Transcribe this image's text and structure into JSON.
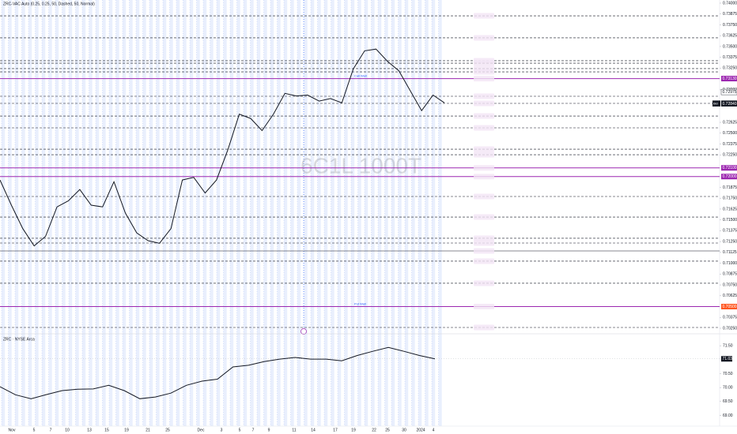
{
  "chart_data": [
    {
      "type": "line",
      "title": "ZRC-VAC Auto (0.25, 0.25, 50, Dashed, 50, Normal)",
      "watermark": "6C1L 1000T",
      "series": [
        {
          "name": "ZRC-VAC",
          "color": "#131722",
          "values": [
            0.7196,
            0.7167,
            0.714,
            0.712,
            0.7131,
            0.7165,
            0.7172,
            0.7185,
            0.7167,
            0.7165,
            0.7194,
            0.7158,
            0.7135,
            0.7126,
            0.7123,
            0.714,
            0.7196,
            0.7199,
            0.7181,
            0.7196,
            0.7231,
            0.7272,
            0.7267,
            0.7253,
            0.7272,
            0.7296,
            0.7293,
            0.7294,
            0.7287,
            0.729,
            0.7285,
            0.7324,
            0.7345,
            0.7347,
            0.7333,
            0.7322,
            0.7299,
            0.7276,
            0.7294,
            0.7285
          ]
        }
      ],
      "levels": [
        {
          "value": 0.73854
        },
        {
          "value": 0.736
        },
        {
          "value": 0.73336
        },
        {
          "value": 0.73308
        },
        {
          "value": 0.73245
        },
        {
          "value": 0.73208
        },
        {
          "value": 0.7313,
          "color": "#9c27b0",
          "label": "Call Wall"
        },
        {
          "value": 0.72926
        },
        {
          "value": 0.72844
        },
        {
          "value": 0.72698
        },
        {
          "value": 0.72562
        },
        {
          "value": 0.72316
        },
        {
          "value": 0.72252
        },
        {
          "value": 0.721,
          "color": "#9c27b0"
        },
        {
          "value": 0.72,
          "color": "#9c27b0"
        },
        {
          "value": 0.7177
        },
        {
          "value": 0.71533
        },
        {
          "value": 0.71288
        },
        {
          "value": 0.71233
        },
        {
          "value": 0.71142,
          "color": "#131722",
          "solid": true
        },
        {
          "value": 0.71024
        },
        {
          "value": 0.70769
        },
        {
          "value": 0.705,
          "color": "#9c27b0",
          "label": "Put Wall"
        },
        {
          "value": 0.70259
        }
      ],
      "price_boxes": [
        {
          "value": 0.7313,
          "label": "0.73130",
          "color": "#9c27b0"
        },
        {
          "value": 0.72975,
          "label": "0.72975",
          "color": "#ffffff"
        },
        {
          "value": 0.72845,
          "label": "0.72845",
          "color": "#131722",
          "tag": "Ask"
        },
        {
          "value": 0.7284,
          "label": "0.72840",
          "color": "#131722",
          "tag": "Bid"
        },
        {
          "value": 0.721,
          "label": "0.72100",
          "color": "#9c27b0"
        },
        {
          "value": 0.72,
          "label": "0.72000",
          "color": "#9c27b0"
        },
        {
          "value": 0.705,
          "label": "0.70500",
          "color": "#ff5722"
        }
      ],
      "ylim": [
        0.7025,
        0.74
      ],
      "yticks": [
        {
          "value": 0.74,
          "label": "0.74000"
        },
        {
          "value": 0.73875,
          "label": "0.73875"
        },
        {
          "value": 0.7375,
          "label": "0.73750"
        },
        {
          "value": 0.73625,
          "label": "0.73625"
        },
        {
          "value": 0.735,
          "label": "0.73500"
        },
        {
          "value": 0.73375,
          "label": "0.73375"
        },
        {
          "value": 0.7325,
          "label": "0.73250"
        },
        {
          "value": 0.73,
          "label": "0.73000"
        },
        {
          "value": 0.72625,
          "label": "0.72625"
        },
        {
          "value": 0.725,
          "label": "0.72500"
        },
        {
          "value": 0.72375,
          "label": "0.72375"
        },
        {
          "value": 0.7225,
          "label": "0.72250"
        },
        {
          "value": 0.71875,
          "label": "0.71875"
        },
        {
          "value": 0.7175,
          "label": "0.71750"
        },
        {
          "value": 0.71625,
          "label": "0.71625"
        },
        {
          "value": 0.715,
          "label": "0.71500"
        },
        {
          "value": 0.71375,
          "label": "0.71375"
        },
        {
          "value": 0.7125,
          "label": "0.71250"
        },
        {
          "value": 0.71125,
          "label": "0.71125"
        },
        {
          "value": 0.71,
          "label": "0.71000"
        },
        {
          "value": 0.70875,
          "label": "0.70875"
        },
        {
          "value": 0.7075,
          "label": "0.70750"
        },
        {
          "value": 0.70625,
          "label": "0.70625"
        },
        {
          "value": 0.70375,
          "label": "0.70375"
        },
        {
          "value": 0.7025,
          "label": "0.70250"
        }
      ]
    },
    {
      "type": "line",
      "title": "ZRC · NYSE Arca",
      "series": [
        {
          "name": "ZRC",
          "color": "#131722",
          "values": [
            70.03,
            69.74,
            69.6,
            69.75,
            69.89,
            69.94,
            69.95,
            70.08,
            69.89,
            69.6,
            69.66,
            69.8,
            70.08,
            70.23,
            70.3,
            70.74,
            70.8,
            70.93,
            71.02,
            71.08,
            71.02,
            71.02,
            70.96,
            71.15,
            71.3,
            71.44,
            71.3,
            71.15,
            71.03
          ]
        }
      ],
      "last_box": {
        "value": 71.03,
        "label": "71.03"
      },
      "ylim": [
        68.9,
        71.9
      ],
      "yticks": [
        {
          "value": 71.5,
          "label": "71.50"
        },
        {
          "value": 70.5,
          "label": "70.50"
        },
        {
          "value": 70,
          "label": "70.00"
        },
        {
          "value": 69.5,
          "label": "69.50"
        },
        {
          "value": 69,
          "label": "69.00"
        }
      ],
      "xticks": [
        "Nov",
        "5",
        "7",
        "10",
        "13",
        "15",
        "19",
        "21",
        "25",
        "Dec",
        "3",
        "5",
        "7",
        "9",
        "11",
        "14",
        "17",
        "19",
        "22",
        "25",
        "30",
        "2024",
        "4"
      ]
    }
  ]
}
